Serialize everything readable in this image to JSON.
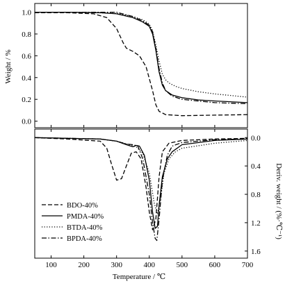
{
  "chart_data": [
    {
      "type": "line",
      "panel": "top",
      "xlabel": "",
      "ylabel": "Weight / %",
      "xlim": [
        50,
        700
      ],
      "ylim": [
        -0.06,
        1.08
      ],
      "x_ticks": [
        100,
        200,
        300,
        400,
        500,
        600,
        700
      ],
      "y_ticks": [
        0.0,
        0.2,
        0.4,
        0.6,
        0.8,
        1.0
      ],
      "y_tick_labels": [
        "0.0",
        "0.2",
        "0.4",
        "0.6",
        "0.8",
        "1.0"
      ],
      "series": [
        {
          "name": "BDO-40%",
          "dash": "dashed",
          "x": [
            50,
            150,
            230,
            270,
            300,
            320,
            330,
            350,
            370,
            390,
            410,
            420,
            430,
            450,
            500,
            600,
            700
          ],
          "y": [
            0.995,
            0.995,
            0.985,
            0.95,
            0.85,
            0.72,
            0.67,
            0.64,
            0.6,
            0.5,
            0.28,
            0.15,
            0.09,
            0.06,
            0.05,
            0.055,
            0.06
          ]
        },
        {
          "name": "PMDA-40%",
          "dash": "solid",
          "x": [
            50,
            150,
            250,
            300,
            350,
            380,
            400,
            410,
            420,
            430,
            440,
            450,
            470,
            500,
            550,
            600,
            700
          ],
          "y": [
            1.0,
            1.0,
            0.995,
            0.985,
            0.95,
            0.91,
            0.87,
            0.8,
            0.65,
            0.45,
            0.33,
            0.28,
            0.24,
            0.215,
            0.195,
            0.185,
            0.17
          ]
        },
        {
          "name": "BTDA-40%",
          "dash": "dotted",
          "x": [
            50,
            200,
            300,
            350,
            380,
            400,
            410,
            420,
            430,
            440,
            450,
            460,
            480,
            500,
            550,
            600,
            700
          ],
          "y": [
            1.0,
            0.998,
            0.99,
            0.96,
            0.93,
            0.89,
            0.83,
            0.7,
            0.55,
            0.43,
            0.38,
            0.35,
            0.32,
            0.3,
            0.27,
            0.25,
            0.22
          ]
        },
        {
          "name": "BPDA-40%",
          "dash": "dashdot",
          "x": [
            50,
            150,
            200,
            250,
            300,
            350,
            380,
            400,
            410,
            420,
            430,
            440,
            450,
            470,
            500,
            600,
            700
          ],
          "y": [
            1.0,
            1.0,
            1.0,
            1.0,
            1.0,
            0.96,
            0.92,
            0.88,
            0.82,
            0.67,
            0.48,
            0.35,
            0.28,
            0.23,
            0.2,
            0.17,
            0.16
          ]
        }
      ]
    },
    {
      "type": "line",
      "panel": "bottom",
      "xlabel": "Temperature / ℃",
      "ylabel": "Deriv. weight / (%·℃⁻¹)",
      "xlim": [
        50,
        700
      ],
      "ylim": [
        1.7,
        -0.12
      ],
      "y_inverted": true,
      "x_ticks": [
        100,
        200,
        300,
        400,
        500,
        600,
        700
      ],
      "x_tick_labels": [
        "100",
        "200",
        "300",
        "400",
        "500",
        "600",
        "700"
      ],
      "y_ticks": [
        0.0,
        0.4,
        0.8,
        1.2,
        1.6
      ],
      "y_tick_labels": [
        "0.0",
        "0.4",
        "0.8",
        "1.2",
        "1.6"
      ],
      "legend_position": "lower-left",
      "series": [
        {
          "name": "BDO-40%",
          "dash": "dashed",
          "x": [
            50,
            150,
            250,
            270,
            285,
            300,
            315,
            330,
            345,
            360,
            375,
            390,
            400,
            410,
            420,
            430,
            440,
            460,
            500,
            600,
            700
          ],
          "y": [
            0,
            0.02,
            0.05,
            0.15,
            0.38,
            0.6,
            0.58,
            0.4,
            0.22,
            0.2,
            0.3,
            0.7,
            1.05,
            1.3,
            1.15,
            0.55,
            0.2,
            0.08,
            0.04,
            0.02,
            0.01
          ]
        },
        {
          "name": "PMDA-40%",
          "dash": "solid",
          "x": [
            50,
            150,
            250,
            300,
            330,
            350,
            360,
            370,
            385,
            400,
            410,
            418,
            425,
            430,
            440,
            455,
            470,
            500,
            600,
            700
          ],
          "y": [
            0,
            0.01,
            0.02,
            0.05,
            0.1,
            0.13,
            0.11,
            0.12,
            0.25,
            0.6,
            1.05,
            1.28,
            1.25,
            0.95,
            0.55,
            0.3,
            0.2,
            0.1,
            0.04,
            0.02
          ]
        },
        {
          "name": "BTDA-40%",
          "dash": "dotted",
          "x": [
            50,
            150,
            250,
            300,
            340,
            360,
            380,
            400,
            415,
            425,
            435,
            445,
            460,
            480,
            500,
            600,
            700
          ],
          "y": [
            0,
            0.01,
            0.02,
            0.05,
            0.1,
            0.13,
            0.22,
            0.5,
            0.92,
            1.08,
            0.85,
            0.5,
            0.3,
            0.2,
            0.15,
            0.08,
            0.04
          ]
        },
        {
          "name": "BPDA-40%",
          "dash": "dashdot",
          "x": [
            50,
            150,
            250,
            300,
            330,
            350,
            365,
            380,
            400,
            410,
            418,
            423,
            430,
            440,
            455,
            470,
            500,
            600,
            700
          ],
          "y": [
            0,
            0.01,
            0.02,
            0.05,
            0.09,
            0.1,
            0.12,
            0.3,
            0.8,
            1.2,
            1.42,
            1.45,
            1.15,
            0.6,
            0.25,
            0.12,
            0.07,
            0.03,
            0.02
          ]
        }
      ]
    }
  ]
}
